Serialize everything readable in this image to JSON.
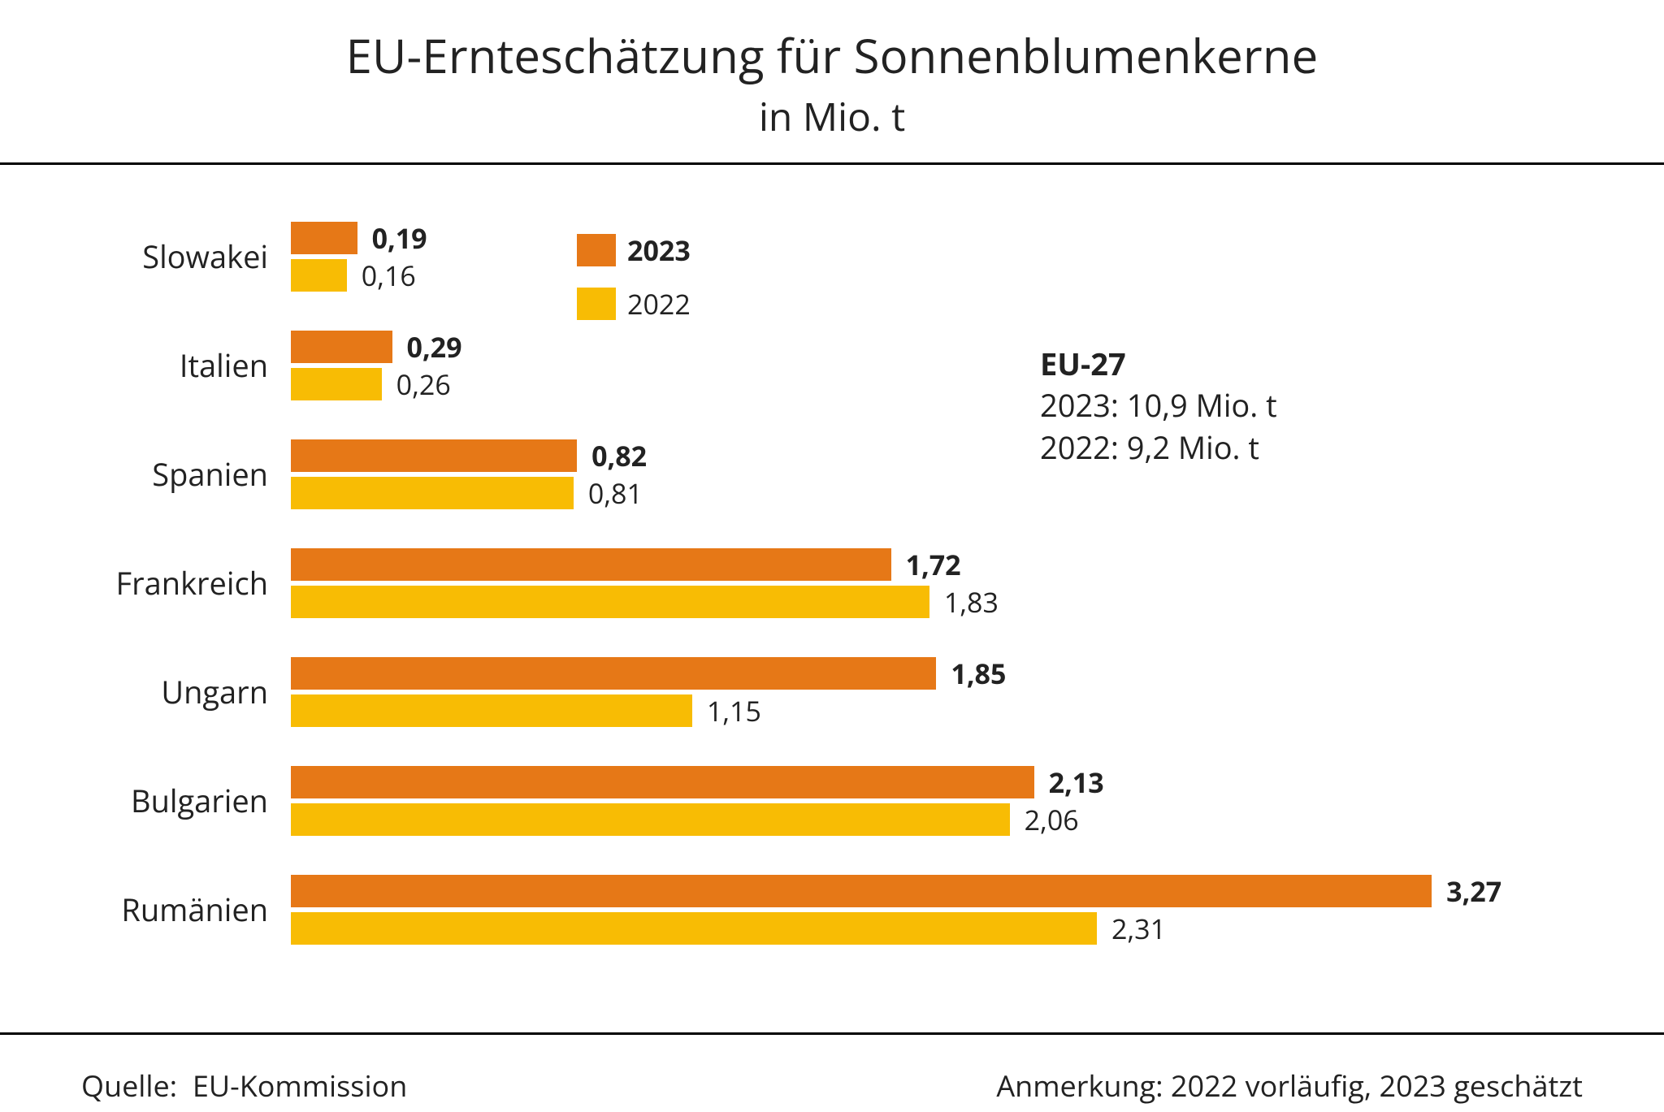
{
  "title": "EU-Ernteschätzung für Sonnenblumenkerne",
  "subtitle": "in Mio. t",
  "color_2023": "#e67817",
  "color_2022": "#f8bc04",
  "legend": {
    "y2023": "2023",
    "y2022": "2022"
  },
  "xmax": 3.4,
  "categories": [
    {
      "name": "Slowakei",
      "v2023": "0,19",
      "n2023": 0.19,
      "v2022": "0,16",
      "n2022": 0.16
    },
    {
      "name": "Italien",
      "v2023": "0,29",
      "n2023": 0.29,
      "v2022": "0,26",
      "n2022": 0.26
    },
    {
      "name": "Spanien",
      "v2023": "0,82",
      "n2023": 0.82,
      "v2022": "0,81",
      "n2022": 0.81
    },
    {
      "name": "Frankreich",
      "v2023": "1,72",
      "n2023": 1.72,
      "v2022": "1,83",
      "n2022": 1.83
    },
    {
      "name": "Ungarn",
      "v2023": "1,85",
      "n2023": 1.85,
      "v2022": "1,15",
      "n2022": 1.15
    },
    {
      "name": "Bulgarien",
      "v2023": "2,13",
      "n2023": 2.13,
      "v2022": "2,06",
      "n2022": 2.06
    },
    {
      "name": "Rumänien",
      "v2023": "3,27",
      "n2023": 3.27,
      "v2022": "2,31",
      "n2022": 2.31
    }
  ],
  "summary": {
    "head": "EU-27",
    "line1": "2023: 10,9 Mio. t",
    "line2": "2022:  9,2  Mio. t"
  },
  "footer": {
    "source_label": "Quelle:",
    "source": "EU-Kommission",
    "note": "Anmerkung: 2022 vorläufig, 2023 geschätzt"
  }
}
